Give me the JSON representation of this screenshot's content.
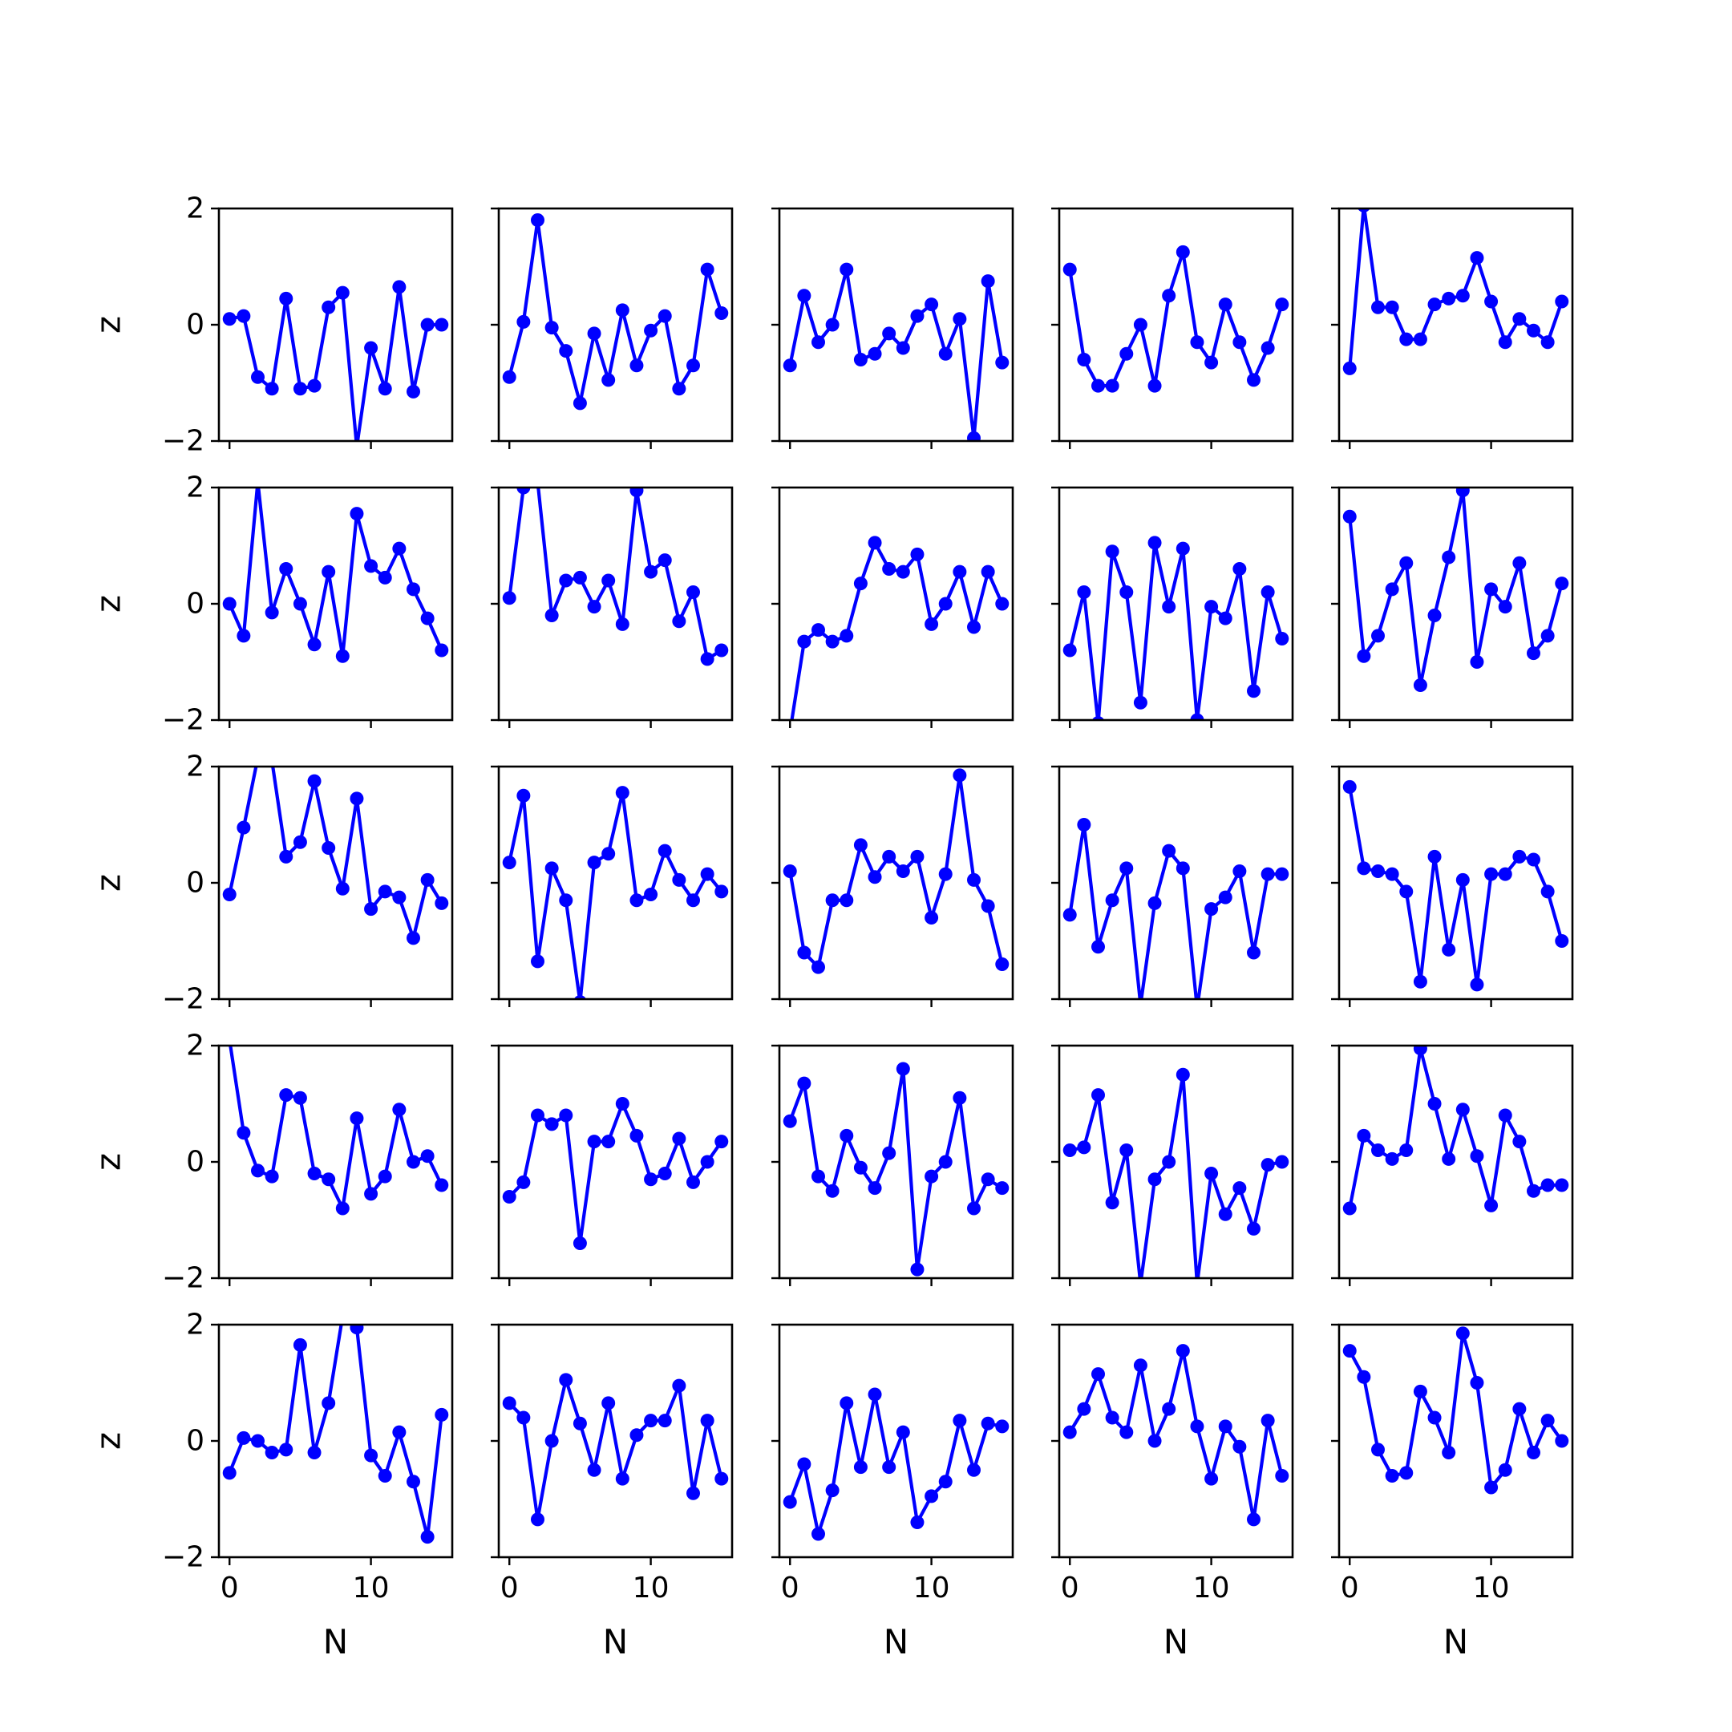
{
  "chart_data": {
    "type": "line",
    "grid": false,
    "layout": {
      "rows": 5,
      "cols": 5,
      "sharex": true,
      "sharey": true
    },
    "xlabel": "N",
    "ylabel": "z",
    "xlim": [
      -0.75,
      15.75
    ],
    "ylim": [
      -2,
      2
    ],
    "xticks": [
      {
        "value": 0,
        "label": "0"
      },
      {
        "value": 10,
        "label": "10"
      }
    ],
    "yticks": [
      {
        "value": 2,
        "label": "2"
      },
      {
        "value": 0,
        "label": "0"
      },
      {
        "value": -2,
        "label": "−2"
      }
    ],
    "line_color": "#0000ff",
    "x": [
      0,
      1,
      2,
      3,
      4,
      5,
      6,
      7,
      8,
      9,
      10,
      11,
      12,
      13,
      14,
      15
    ],
    "panels": [
      [
        0.1,
        0.15,
        -0.9,
        -1.1,
        0.45,
        -1.1,
        -1.05,
        0.3,
        0.55,
        -2.1,
        -0.4,
        -1.1,
        0.65,
        -1.15,
        0.0,
        0.0
      ],
      [
        -0.9,
        0.05,
        1.8,
        -0.05,
        -0.45,
        -1.35,
        -0.15,
        -0.95,
        0.25,
        -0.7,
        -0.1,
        0.15,
        -1.1,
        -0.7,
        0.95,
        0.2
      ],
      [
        -0.7,
        0.5,
        -0.3,
        0.0,
        0.95,
        -0.6,
        -0.5,
        -0.15,
        -0.4,
        0.15,
        0.35,
        -0.5,
        0.1,
        -1.95,
        0.75,
        -0.65
      ],
      [
        0.95,
        -0.6,
        -1.05,
        -1.05,
        -0.5,
        0.0,
        -1.05,
        0.5,
        1.25,
        -0.3,
        -0.65,
        0.35,
        -0.3,
        -0.95,
        -0.4,
        0.35
      ],
      [
        -0.75,
        2.05,
        0.3,
        0.3,
        -0.25,
        -0.25,
        0.35,
        0.45,
        0.5,
        1.15,
        0.4,
        -0.3,
        0.1,
        -0.1,
        -0.3,
        0.4
      ],
      [
        0.0,
        -0.55,
        2.1,
        -0.15,
        0.6,
        0.0,
        -0.7,
        0.55,
        -0.9,
        1.55,
        0.65,
        0.45,
        0.95,
        0.25,
        -0.25,
        -0.8
      ],
      [
        0.1,
        2.0,
        2.1,
        -0.2,
        0.4,
        0.45,
        -0.05,
        0.4,
        -0.35,
        1.95,
        0.55,
        0.75,
        -0.3,
        0.2,
        -0.95,
        -0.8
      ],
      [
        -2.2,
        -0.65,
        -0.45,
        -0.65,
        -0.55,
        0.35,
        1.05,
        0.6,
        0.55,
        0.85,
        -0.35,
        0.0,
        0.55,
        -0.4,
        0.55,
        0.0
      ],
      [
        -0.8,
        0.2,
        -2.05,
        0.9,
        0.2,
        -1.7,
        1.05,
        -0.05,
        0.95,
        -2.0,
        -0.05,
        -0.25,
        0.6,
        -1.5,
        0.2,
        -0.6
      ],
      [
        1.5,
        -0.9,
        -0.55,
        0.25,
        0.7,
        -1.4,
        -0.2,
        0.8,
        1.95,
        -1.0,
        0.25,
        -0.05,
        0.7,
        -0.85,
        -0.55,
        0.35
      ],
      [
        -0.2,
        0.95,
        2.15,
        2.1,
        0.45,
        0.7,
        1.75,
        0.6,
        -0.1,
        1.45,
        -0.45,
        -0.15,
        -0.25,
        -0.95,
        0.05,
        -0.35
      ],
      [
        0.35,
        1.5,
        -1.35,
        0.25,
        -0.3,
        -2.05,
        0.35,
        0.5,
        1.55,
        -0.3,
        -0.2,
        0.55,
        0.05,
        -0.3,
        0.15,
        -0.15
      ],
      [
        0.2,
        -1.2,
        -1.45,
        -0.3,
        -0.3,
        0.65,
        0.1,
        0.45,
        0.2,
        0.45,
        -0.6,
        0.15,
        1.85,
        0.05,
        -0.4,
        -1.4
      ],
      [
        -0.55,
        1.0,
        -1.1,
        -0.3,
        0.25,
        -2.1,
        -0.35,
        0.55,
        0.25,
        -2.15,
        -0.45,
        -0.25,
        0.2,
        -1.2,
        0.15,
        0.15
      ],
      [
        1.65,
        0.25,
        0.2,
        0.15,
        -0.15,
        -1.7,
        0.45,
        -1.15,
        0.05,
        -1.75,
        0.15,
        0.15,
        0.45,
        0.4,
        -0.15,
        -1.0
      ],
      [
        2.1,
        0.5,
        -0.15,
        -0.25,
        1.15,
        1.1,
        -0.2,
        -0.3,
        -0.8,
        0.75,
        -0.55,
        -0.25,
        0.9,
        0.0,
        0.1,
        -0.4
      ],
      [
        -0.6,
        -0.35,
        0.8,
        0.65,
        0.8,
        -1.4,
        0.35,
        0.35,
        1.0,
        0.45,
        -0.3,
        -0.2,
        0.4,
        -0.35,
        0.0,
        0.35
      ],
      [
        0.7,
        1.35,
        -0.25,
        -0.5,
        0.45,
        -0.1,
        -0.45,
        0.15,
        1.6,
        -1.85,
        -0.25,
        0.0,
        1.1,
        -0.8,
        -0.3,
        -0.45
      ],
      [
        0.2,
        0.25,
        1.15,
        -0.7,
        0.2,
        -2.1,
        -0.3,
        0.0,
        1.5,
        -2.1,
        -0.2,
        -0.9,
        -0.45,
        -1.15,
        -0.05,
        0.0
      ],
      [
        -0.8,
        0.45,
        0.2,
        0.05,
        0.2,
        1.95,
        1.0,
        0.05,
        0.9,
        0.1,
        -0.75,
        0.8,
        0.35,
        -0.5,
        -0.4,
        -0.4
      ],
      [
        -0.55,
        0.05,
        0.0,
        -0.2,
        -0.15,
        1.65,
        -0.2,
        0.65,
        2.15,
        1.95,
        -0.25,
        -0.6,
        0.15,
        -0.7,
        -1.65,
        0.45
      ],
      [
        0.65,
        0.4,
        -1.35,
        0.0,
        1.05,
        0.3,
        -0.5,
        0.65,
        -0.65,
        0.1,
        0.35,
        0.35,
        0.95,
        -0.9,
        0.35,
        -0.65
      ],
      [
        -1.05,
        -0.4,
        -1.6,
        -0.85,
        0.65,
        -0.45,
        0.8,
        -0.45,
        0.15,
        -1.4,
        -0.95,
        -0.7,
        0.35,
        -0.5,
        0.3,
        0.25
      ],
      [
        0.15,
        0.55,
        1.15,
        0.4,
        0.15,
        1.3,
        0.0,
        0.55,
        1.55,
        0.25,
        -0.65,
        0.25,
        -0.1,
        -1.35,
        0.35,
        -0.6
      ],
      [
        1.55,
        1.1,
        -0.15,
        -0.6,
        -0.55,
        0.85,
        0.4,
        -0.2,
        1.85,
        1.0,
        -0.8,
        -0.5,
        0.55,
        -0.2,
        0.35,
        0.0
      ]
    ]
  }
}
